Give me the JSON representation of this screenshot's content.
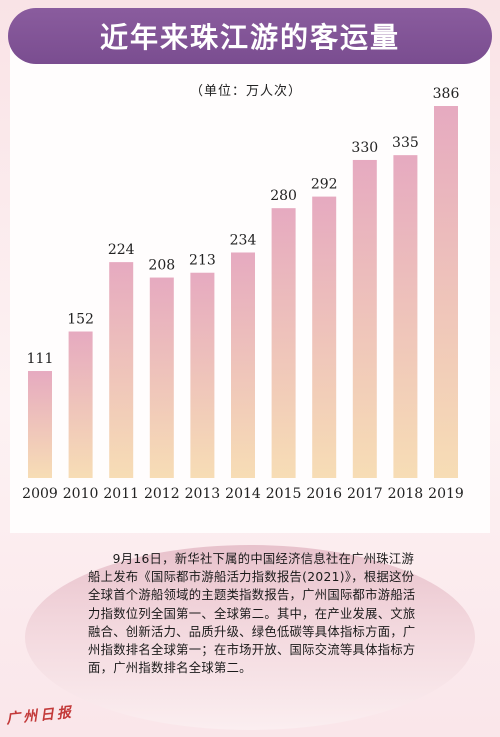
{
  "title": "近年来珠江游的客运量",
  "unit_label": "（单位：万人次）",
  "chart_data": {
    "type": "bar",
    "title": "近年来珠江游的客运量",
    "ylabel": "（单位：万人次）",
    "categories": [
      "2009",
      "2010",
      "2011",
      "2012",
      "2013",
      "2014",
      "2015",
      "2016",
      "2017",
      "2018",
      "2019"
    ],
    "values": [
      111,
      152,
      224,
      208,
      213,
      234,
      280,
      292,
      330,
      335,
      386
    ],
    "ylim": [
      0,
      400
    ],
    "bar_gradient": [
      "#e6aac0",
      "#f7ddb5"
    ],
    "grid": false
  },
  "caption": "9月16日，新华社下属的中国经济信息社在广州珠江游船上发布《国际都市游船活力指数报告(2021)》，根据这份全球首个游船领域的主题类指数报告，广州国际都市游船活力指数位列全国第一、全球第二。其中，在产业发展、文旅融合、创新活力、品质升级、绿色低碳等具体指标方面，广州指数排名全球第一；在市场开放、国际交流等具体指标方面，广州指数排名全球第二。",
  "watermark": "广州日报",
  "colors": {
    "banner": "#7a4d90",
    "background": "#fbe9ec"
  }
}
